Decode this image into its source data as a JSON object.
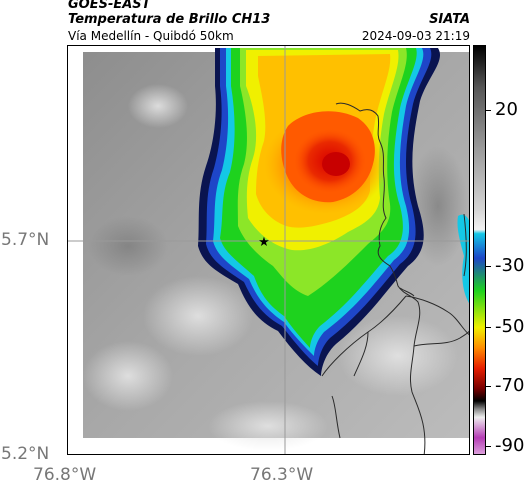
{
  "header": {
    "satellite": "GOES-EAST",
    "product": "Temperatura de Brillo CH13",
    "route": "Vía Medellín - Quibdó 50km",
    "agency": "SIATA",
    "datetime": "2024-09-03 21:19"
  },
  "axes": {
    "lat_labels": [
      "5.7°N",
      "5.2°N"
    ],
    "lon_labels": [
      "76.8°W",
      "76.3°W"
    ]
  },
  "colorbar": {
    "tick_labels": [
      "20",
      "-30",
      "-50",
      "-70",
      "-90"
    ],
    "colors": {
      "cyan": "#14c8e6",
      "green": "#1ed21e",
      "yellow": "#f0f000",
      "orange": "#ff8c00",
      "red": "#e61e00",
      "darkred": "#780000",
      "magenta": "#b43cb4"
    }
  },
  "map": {
    "marker_icon": "star-icon",
    "gridline_color": "#9a9a9a",
    "border_color": "#2a2a2a"
  }
}
